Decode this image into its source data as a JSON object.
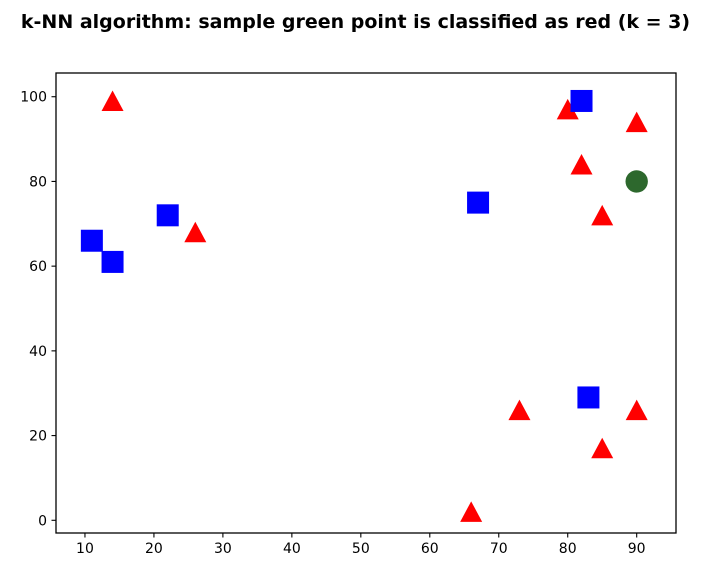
{
  "title": "k-NN algorithm: sample green point is classified as red (k = 3)",
  "chart_data": {
    "type": "scatter",
    "title": "k-NN algorithm: sample green point is classified as red (k = 3)",
    "xlabel": "",
    "ylabel": "",
    "xlim": [
      5.8,
      95.7
    ],
    "ylim": [
      -3.0,
      105.6
    ],
    "x_ticks": [
      10,
      20,
      30,
      40,
      50,
      60,
      70,
      80,
      90
    ],
    "y_ticks": [
      0,
      20,
      40,
      60,
      80,
      100
    ],
    "grid": false,
    "legend_position": "none",
    "series": [
      {
        "name": "red-class-points",
        "marker": "triangle-up",
        "color": "#ff0000",
        "points": [
          [
            14,
            99
          ],
          [
            26,
            68
          ],
          [
            80,
            97
          ],
          [
            90,
            94
          ],
          [
            82,
            84
          ],
          [
            85,
            72
          ],
          [
            73,
            26
          ],
          [
            90,
            26
          ],
          [
            85,
            17
          ],
          [
            66,
            2
          ]
        ]
      },
      {
        "name": "blue-class-points",
        "marker": "square",
        "color": "#0000ff",
        "points": [
          [
            11,
            66
          ],
          [
            14,
            61
          ],
          [
            22,
            72
          ],
          [
            67,
            75
          ],
          [
            82,
            99
          ],
          [
            83,
            29
          ]
        ]
      },
      {
        "name": "sample-green-point",
        "marker": "circle",
        "color": "#2d682d",
        "points": [
          [
            90,
            80
          ]
        ]
      }
    ]
  }
}
